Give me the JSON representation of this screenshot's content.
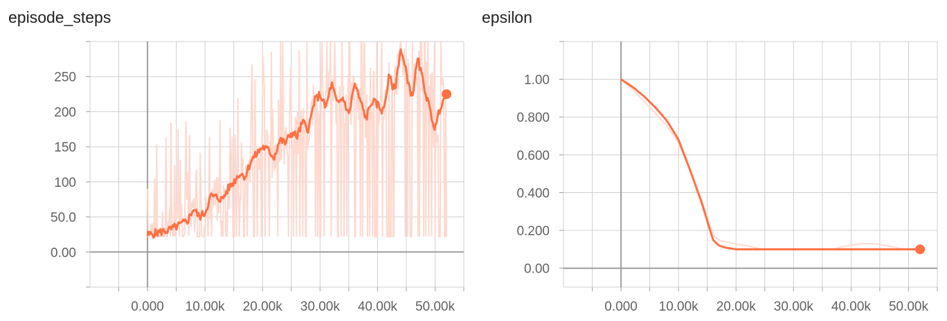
{
  "colors": {
    "raw": "#fdd9cf",
    "smoothed": "#ff7043",
    "grid": "#cfcfcf",
    "axis": "#9e9e9e"
  },
  "chart_data": [
    {
      "type": "line",
      "title": "episode_steps",
      "xlabel": "",
      "ylabel": "",
      "xlim": [
        -10000,
        55000
      ],
      "ylim": [
        -50,
        300
      ],
      "x_ticks": [
        0,
        10000,
        20000,
        30000,
        40000,
        50000
      ],
      "x_tick_labels": [
        "0.000",
        "10.00k",
        "20.00k",
        "30.00k",
        "40.00k",
        "50.00k"
      ],
      "y_ticks": [
        0,
        50,
        100,
        150,
        200,
        250
      ],
      "y_tick_labels": [
        "0.00",
        "50.0",
        "100",
        "150",
        "200",
        "250"
      ],
      "grid": true,
      "series": [
        {
          "x": [
            0,
            2000,
            4000,
            6000,
            7000,
            8000,
            9000,
            10000,
            11000,
            12000,
            13000,
            14000,
            15000,
            16000,
            17000,
            18000,
            19000,
            20000,
            21000,
            22000,
            23000,
            24000,
            25000,
            26000,
            27000,
            28000,
            29000,
            30000,
            31000,
            32000,
            33000,
            34000,
            35000,
            36000,
            37000,
            38000,
            39000,
            40000,
            41000,
            42000,
            43000,
            44000,
            45000,
            46000,
            47000,
            48000,
            49000,
            50000,
            51000,
            52000
          ],
          "y": [
            24,
            28,
            32,
            40,
            45,
            62,
            50,
            56,
            80,
            78,
            75,
            90,
            100,
            112,
            108,
            130,
            140,
            150,
            145,
            135,
            160,
            155,
            170,
            165,
            185,
            175,
            215,
            225,
            205,
            240,
            210,
            220,
            195,
            240,
            215,
            190,
            215,
            210,
            200,
            250,
            230,
            290,
            255,
            220,
            275,
            240,
            205,
            175,
            210,
            225
          ]
        }
      ]
    },
    {
      "type": "line",
      "title": "epsilon",
      "xlabel": "",
      "ylabel": "",
      "xlim": [
        -10000,
        55000
      ],
      "ylim": [
        -0.1,
        1.2
      ],
      "x_ticks": [
        0,
        10000,
        20000,
        30000,
        40000,
        50000
      ],
      "x_tick_labels": [
        "0.000",
        "10.00k",
        "20.00k",
        "30.00k",
        "40.00k",
        "50.00k"
      ],
      "y_ticks": [
        0,
        0.2,
        0.4,
        0.6,
        0.8,
        1.0
      ],
      "y_tick_labels": [
        "0.00",
        "0.200",
        "0.400",
        "0.600",
        "0.800",
        "1.00"
      ],
      "grid": true,
      "series": [
        {
          "x": [
            0,
            2000,
            4000,
            6000,
            8000,
            10000,
            12000,
            14000,
            15000,
            16000,
            17000,
            18000,
            20000,
            22000,
            30000,
            40000,
            52000
          ],
          "y": [
            1.0,
            0.96,
            0.91,
            0.85,
            0.78,
            0.68,
            0.52,
            0.35,
            0.25,
            0.15,
            0.12,
            0.11,
            0.1,
            0.1,
            0.1,
            0.1,
            0.1
          ]
        }
      ]
    }
  ]
}
